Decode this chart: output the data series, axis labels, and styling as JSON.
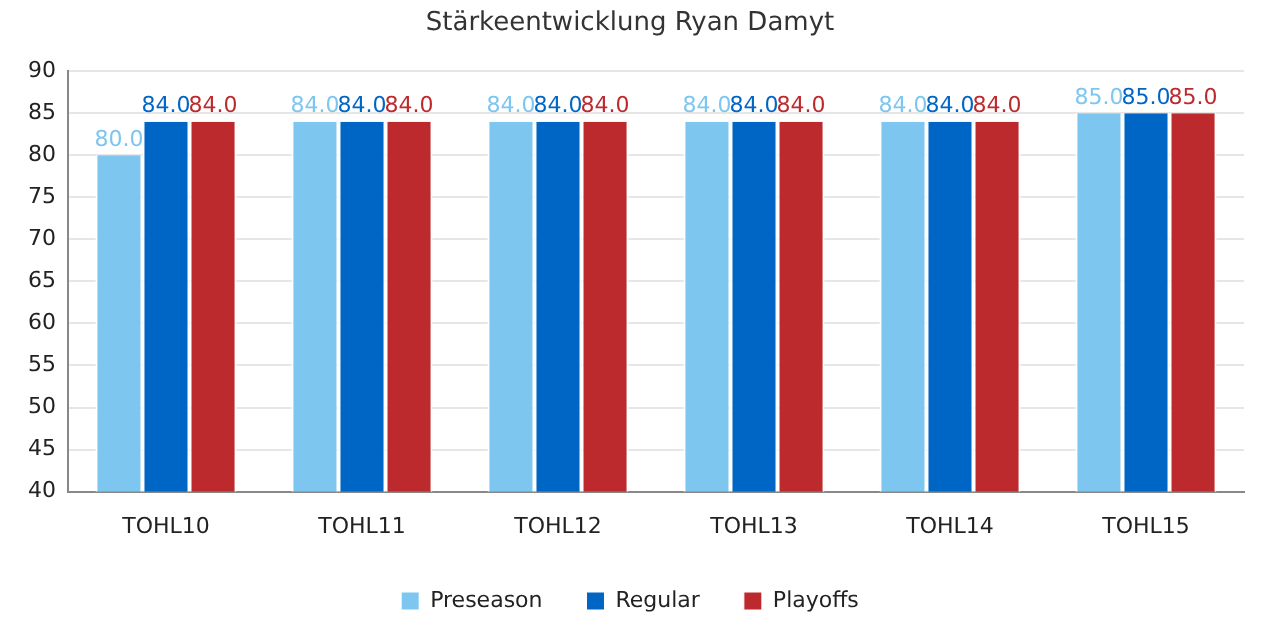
{
  "chart_data": {
    "type": "bar",
    "title": "Stärkeentwicklung Ryan Damyt",
    "categories": [
      "TOHL10",
      "TOHL11",
      "TOHL12",
      "TOHL13",
      "TOHL14",
      "TOHL15"
    ],
    "series": [
      {
        "name": "Preseason",
        "color": "#7cc6f0",
        "values": [
          80,
          84,
          84,
          84,
          84,
          85
        ],
        "value_labels": [
          "80.0",
          "84.0",
          "84.0",
          "84.0",
          "84.0",
          "85.0"
        ]
      },
      {
        "name": "Regular",
        "color": "#0066c6",
        "values": [
          84,
          84,
          84,
          84,
          84,
          85
        ],
        "value_labels": [
          "84.0",
          "84.0",
          "84.0",
          "84.0",
          "84.0",
          "85.0"
        ]
      },
      {
        "name": "Playoffs",
        "color": "#bd2a2e",
        "values": [
          84,
          84,
          84,
          84,
          84,
          85
        ],
        "value_labels": [
          "84.0",
          "84.0",
          "84.0",
          "84.0",
          "84.0",
          "85.0"
        ]
      }
    ],
    "ylim": [
      40,
      90
    ],
    "yticks": [
      40,
      45,
      50,
      55,
      60,
      65,
      70,
      75,
      80,
      85,
      90
    ],
    "grid": "y",
    "legend": "bottom"
  }
}
